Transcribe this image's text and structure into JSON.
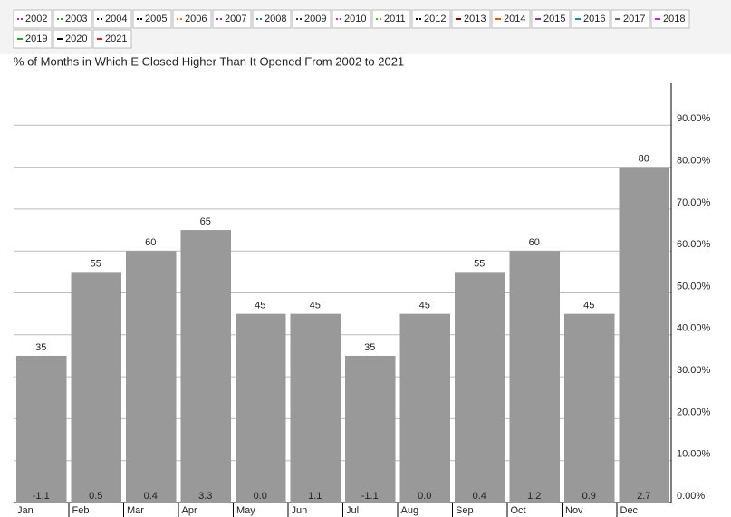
{
  "legend": [
    {
      "name": "2002",
      "color": "#9b30c8",
      "style": "dotted"
    },
    {
      "name": "2003",
      "color": "#2ca02c",
      "style": "dotted"
    },
    {
      "name": "2004",
      "color": "#000000",
      "style": "dotted"
    },
    {
      "name": "2005",
      "color": "#000000",
      "style": "dotted"
    },
    {
      "name": "2006",
      "color": "#e07b00",
      "style": "dotted"
    },
    {
      "name": "2007",
      "color": "#7b3fa0",
      "style": "dotted"
    },
    {
      "name": "2008",
      "color": "#1f7a8c",
      "style": "dotted"
    },
    {
      "name": "2009",
      "color": "#333333",
      "style": "dotted"
    },
    {
      "name": "2010",
      "color": "#d020d0",
      "style": "dotted"
    },
    {
      "name": "2011",
      "color": "#4cbb17",
      "style": "dotted"
    },
    {
      "name": "2012",
      "color": "#000000",
      "style": "dotted"
    },
    {
      "name": "2013",
      "color": "#8b0000",
      "style": "dashed"
    },
    {
      "name": "2014",
      "color": "#e06000",
      "style": "dashed"
    },
    {
      "name": "2015",
      "color": "#7b3fa0",
      "style": "dashed"
    },
    {
      "name": "2016",
      "color": "#1f8c7a",
      "style": "dashed"
    },
    {
      "name": "2017",
      "color": "#666666",
      "style": "dashed"
    },
    {
      "name": "2018",
      "color": "#d020d0",
      "style": "dashed"
    },
    {
      "name": "2019",
      "color": "#2ca02c",
      "style": "dashed"
    },
    {
      "name": "2020",
      "color": "#000000",
      "style": "dashed"
    },
    {
      "name": "2021",
      "color": "#e02020",
      "style": "dashed"
    }
  ],
  "chart_data": {
    "type": "bar",
    "title": "% of Months in Which E Closed Higher Than It Opened From 2002 to 2021",
    "categories": [
      "Jan",
      "Feb",
      "Mar",
      "Apr",
      "May",
      "Jun",
      "Jul",
      "Aug",
      "Sep",
      "Oct",
      "Nov",
      "Dec"
    ],
    "values": [
      35,
      55,
      60,
      65,
      45,
      45,
      35,
      45,
      55,
      60,
      45,
      80
    ],
    "change_values": [
      -1.1,
      0.5,
      0.4,
      3.3,
      0.0,
      1.1,
      -1.1,
      0.0,
      0.4,
      1.2,
      0.9,
      2.7
    ],
    "change_labels": [
      "-1.1",
      "0.5",
      "0.4",
      "3.3",
      "0.0",
      "1.1",
      "-1.1",
      "0.0",
      "0.4",
      "1.2",
      "0.9",
      "2.7"
    ],
    "color": "#999999",
    "ylim": [
      0,
      100
    ],
    "yticks": [
      {
        "value": 0,
        "label": "0.00%"
      },
      {
        "value": 10,
        "label": "10.00%"
      },
      {
        "value": 20,
        "label": "20.00%"
      },
      {
        "value": 30,
        "label": "30.00%"
      },
      {
        "value": 40,
        "label": "40.00%"
      },
      {
        "value": 50,
        "label": "50.00%"
      },
      {
        "value": 60,
        "label": "60.00%"
      },
      {
        "value": 70,
        "label": "70.00%"
      },
      {
        "value": 80,
        "label": "80.00%"
      },
      {
        "value": 90,
        "label": "90.00%"
      }
    ],
    "grid": true
  }
}
